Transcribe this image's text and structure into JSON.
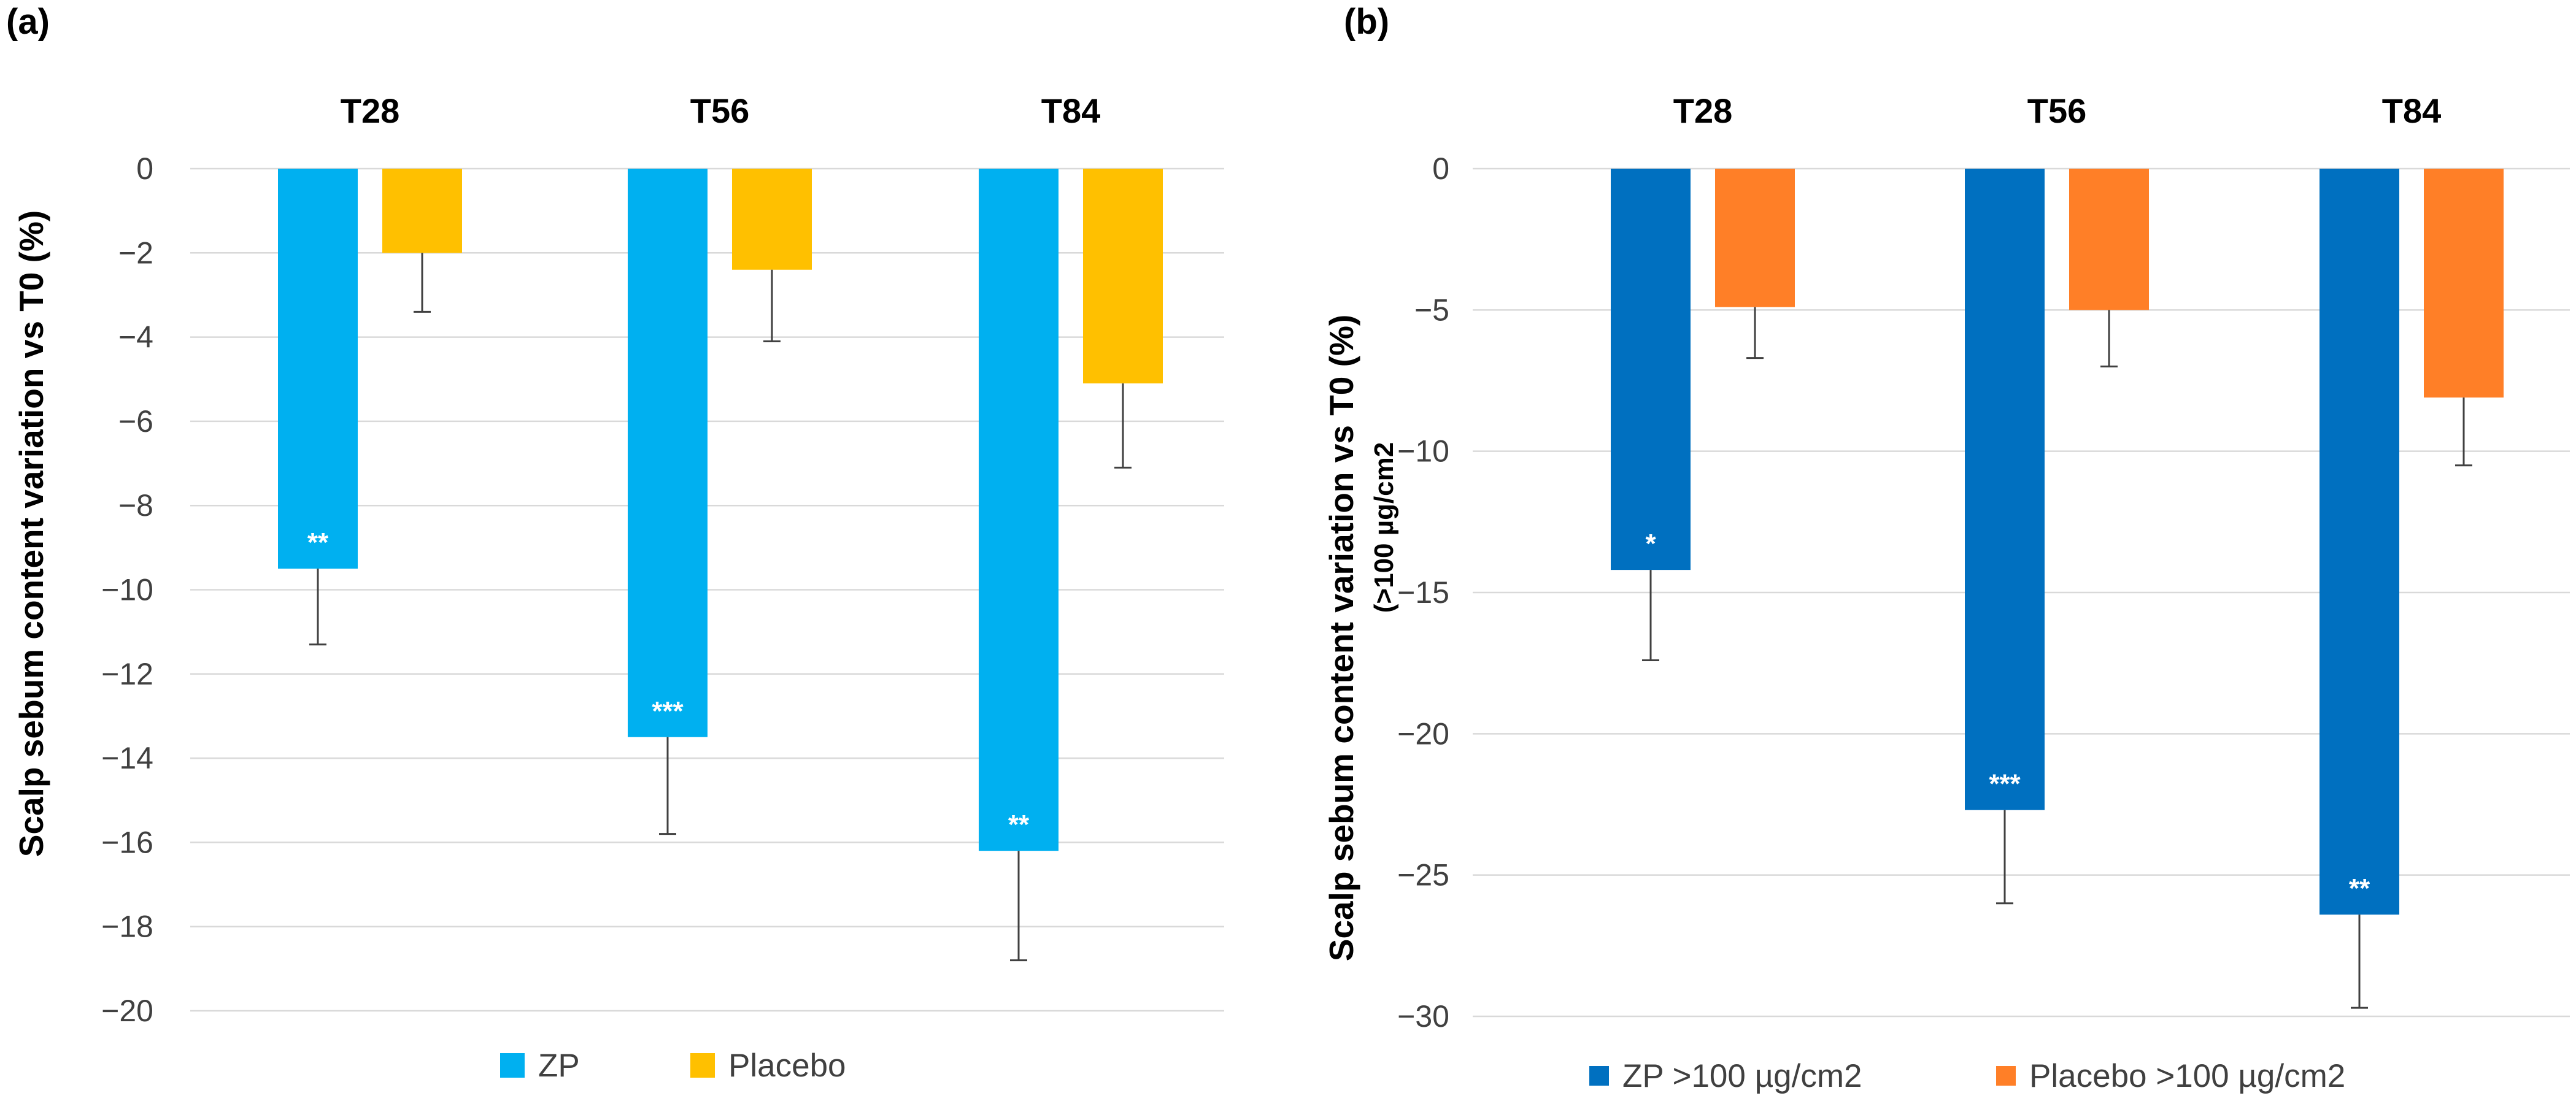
{
  "chart_data": [
    {
      "type": "bar",
      "panel_label": "(a)",
      "categories": [
        "T28",
        "T56",
        "T84"
      ],
      "ylabel": "Scalp sebum content  variation vs T0 (%)",
      "ylim": [
        -20,
        0
      ],
      "yticks": [
        0,
        -2,
        -4,
        -6,
        -8,
        -10,
        -12,
        -14,
        -16,
        -18,
        -20
      ],
      "ytick_labels": [
        "0",
        "−2",
        "−4",
        "−6",
        "−8",
        "−10",
        "−12",
        "−14",
        "−16",
        "−18",
        "−20"
      ],
      "grid": true,
      "legend_position": "bottom-center",
      "series": [
        {
          "name": "ZP",
          "color": "#00B0F0",
          "values": [
            -9.5,
            -13.5,
            -16.2
          ],
          "errors": [
            1.8,
            2.3,
            2.6
          ],
          "significance": [
            "**",
            "***",
            "**"
          ]
        },
        {
          "name": "Placebo",
          "color": "#FFC000",
          "values": [
            -2.0,
            -2.4,
            -5.1
          ],
          "errors": [
            1.4,
            1.7,
            2.0
          ],
          "significance": [
            "",
            "",
            ""
          ]
        }
      ]
    },
    {
      "type": "bar",
      "panel_label": "(b)",
      "categories": [
        "T28",
        "T56",
        "T84"
      ],
      "ylabel": "Scalp sebum content  variation vs T0 (%)",
      "ylabel_sub": "(>100 µg/cm2",
      "ylim": [
        -30,
        0
      ],
      "yticks": [
        0,
        -5,
        -10,
        -15,
        -20,
        -25,
        -30
      ],
      "ytick_labels": [
        "0",
        "−5",
        "−10",
        "−15",
        "−20",
        "−25",
        "−30"
      ],
      "grid": true,
      "legend_position": "bottom-center",
      "series": [
        {
          "name": "ZP  >100 µg/cm2",
          "color": "#0070C0",
          "values": [
            -14.2,
            -22.7,
            -26.4
          ],
          "errors": [
            3.2,
            3.3,
            3.3
          ],
          "significance": [
            "*",
            "***",
            "**"
          ]
        },
        {
          "name": "Placebo  >100 µg/cm2",
          "color": "#FF7F27",
          "values": [
            -4.9,
            -5.0,
            -8.1
          ],
          "errors": [
            1.8,
            2.0,
            2.4
          ],
          "significance": [
            "",
            "",
            ""
          ]
        }
      ]
    }
  ]
}
